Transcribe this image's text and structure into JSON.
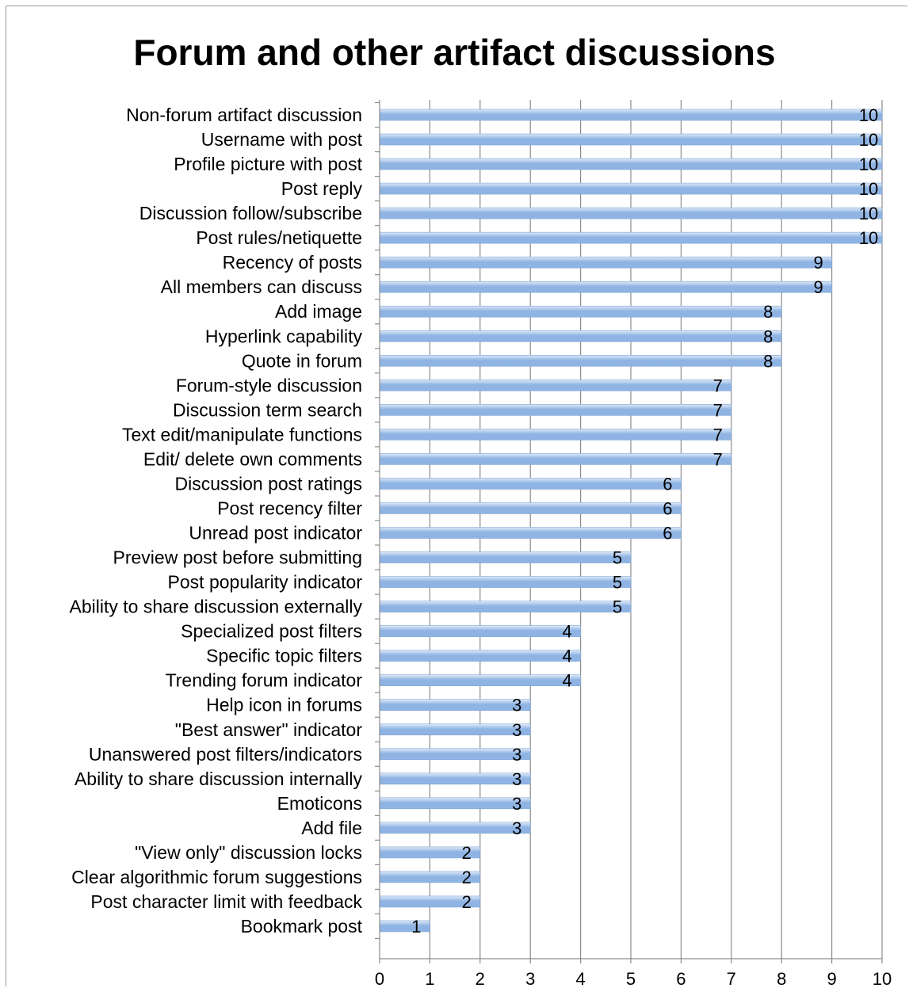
{
  "chart_data": {
    "type": "bar",
    "orientation": "horizontal",
    "title": "Forum and other artifact discussions",
    "categories": [
      "Non-forum artifact discussion",
      "Username with post",
      "Profile picture with post",
      "Post reply",
      "Discussion follow/subscribe",
      "Post rules/netiquette",
      "Recency of posts",
      "All members can discuss",
      "Add image",
      "Hyperlink capability",
      "Quote in forum",
      "Forum-style discussion",
      "Discussion term search",
      "Text edit/manipulate functions",
      "Edit/ delete own comments",
      "Discussion post ratings",
      "Post recency filter",
      "Unread post indicator",
      "Preview post before submitting",
      "Post popularity indicator",
      "Ability to share discussion externally",
      "Specialized post filters",
      "Specific topic filters",
      "Trending forum indicator",
      "Help icon in forums",
      "\"Best answer\" indicator",
      "Unanswered post filters/indicators",
      "Ability to share discussion internally",
      "Emoticons",
      "Add file",
      "\"View only\" discussion locks",
      "Clear algorithmic forum suggestions",
      "Post character limit with feedback",
      "Bookmark post"
    ],
    "values": [
      10,
      10,
      10,
      10,
      10,
      10,
      9,
      9,
      8,
      8,
      8,
      7,
      7,
      7,
      7,
      6,
      6,
      6,
      5,
      5,
      5,
      4,
      4,
      4,
      3,
      3,
      3,
      3,
      3,
      3,
      2,
      2,
      2,
      1
    ],
    "xlim": [
      0,
      10
    ],
    "xticks": [
      "0",
      "1",
      "2",
      "3",
      "4",
      "5",
      "6",
      "7",
      "8",
      "9",
      "10"
    ],
    "grid": "vertical",
    "legend": "none",
    "data_labels": true,
    "bar_color": "#8fb4e3",
    "bar_highlight": "#dfeaf8"
  }
}
